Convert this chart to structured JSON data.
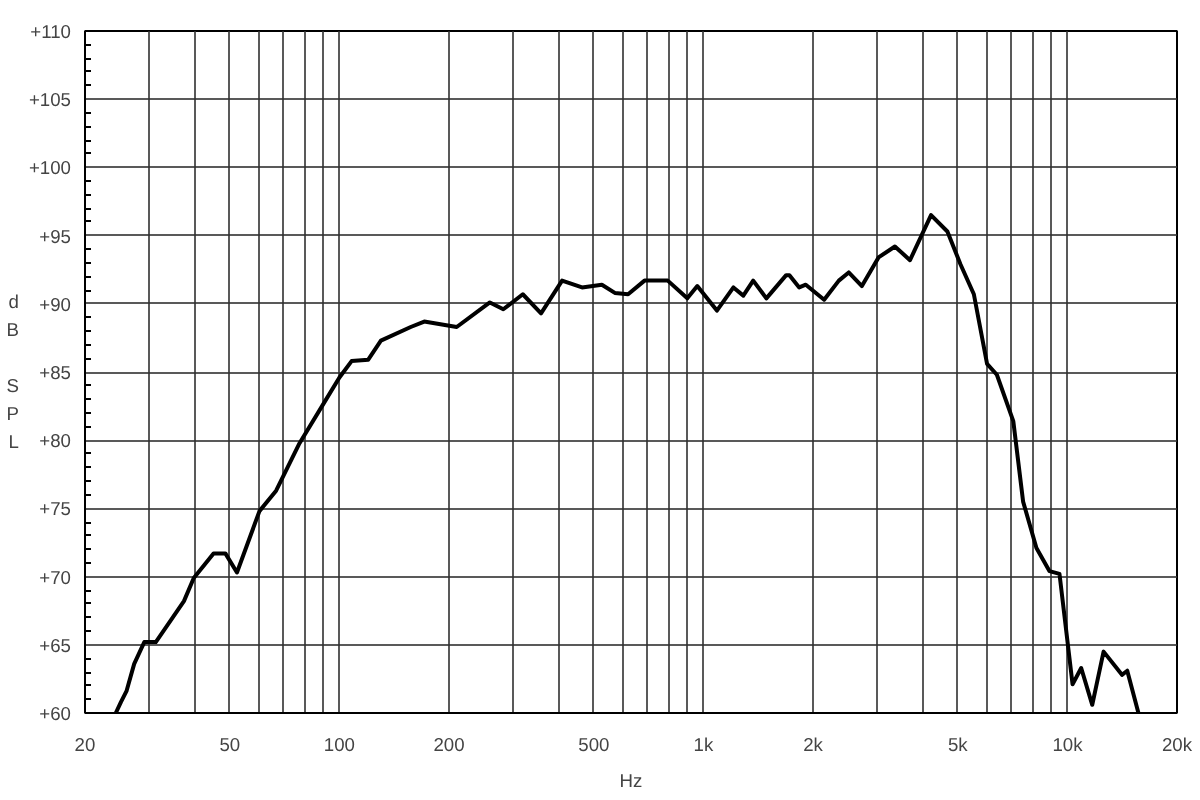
{
  "chart_data": {
    "type": "line",
    "xlabel": "Hz",
    "ylabel": "dB SPL",
    "log": "x",
    "grid": true,
    "marker": "none",
    "line_style": "solid",
    "xlim": [
      20,
      20000
    ],
    "ylim": [
      60,
      110
    ],
    "xticks": [
      20,
      {
        "value": 30,
        "label": null
      },
      {
        "value": 40,
        "label": null
      },
      50,
      {
        "value": 60,
        "label": null
      },
      {
        "value": 70,
        "label": null
      },
      {
        "value": 80,
        "label": null
      },
      {
        "value": 90,
        "label": null
      },
      100,
      200,
      {
        "value": 300,
        "label": null
      },
      {
        "value": 400,
        "label": null
      },
      500,
      {
        "value": 600,
        "label": null
      },
      {
        "value": 700,
        "label": null
      },
      {
        "value": 800,
        "label": null
      },
      {
        "value": 900,
        "label": null
      },
      {
        "value": 1000,
        "label": "1k"
      },
      {
        "value": 2000,
        "label": "2k"
      },
      {
        "value": 3000,
        "label": null
      },
      {
        "value": 4000,
        "label": null
      },
      {
        "value": 5000,
        "label": "5k"
      },
      {
        "value": 6000,
        "label": null
      },
      {
        "value": 7000,
        "label": null
      },
      {
        "value": 8000,
        "label": null
      },
      {
        "value": 9000,
        "label": null
      },
      {
        "value": 10000,
        "label": "10k"
      },
      {
        "value": 20000,
        "label": "20k"
      }
    ],
    "yticks": [
      {
        "value": 60,
        "label": "+60"
      },
      {
        "value": 65,
        "label": "+65"
      },
      {
        "value": 70,
        "label": "+70"
      },
      {
        "value": 75,
        "label": "+75"
      },
      {
        "value": 80,
        "label": "+80"
      },
      {
        "value": 85,
        "label": "+85"
      },
      {
        "value": 90,
        "label": "+90"
      },
      {
        "value": 95,
        "label": "+95"
      },
      {
        "value": 100,
        "label": "+100"
      },
      {
        "value": 105,
        "label": "+105"
      },
      {
        "value": 110,
        "label": "+110"
      }
    ],
    "series": [
      {
        "color": "#000000",
        "x": [
          24.3,
          25.1,
          26.0,
          27.3,
          29.1,
          31.3,
          37.4,
          39.8,
          45.1,
          48.6,
          52.3,
          60.3,
          67,
          77.4,
          91.5,
          100,
          108,
          120,
          130,
          157,
          171,
          210,
          259,
          282,
          319,
          358,
          409,
          464,
          526,
          571,
          621,
          689,
          798,
          903,
          962,
          1089,
          1209,
          1287,
          1370,
          1489,
          1688,
          1723,
          1833,
          1911,
          2146,
          2355,
          2507,
          2725,
          3027,
          3358,
          3694,
          4220,
          4680,
          5083,
          5533,
          6015,
          6400,
          7100,
          7555,
          8220,
          8930,
          9510,
          10330,
          10910,
          11700,
          12570,
          14120,
          14600,
          15670
        ],
        "values": [
          60,
          60.8,
          61.6,
          63.6,
          65.2,
          65.2,
          68.2,
          69.9,
          71.7,
          71.7,
          70.3,
          74.8,
          76.3,
          79.7,
          82.9,
          84.6,
          85.8,
          85.9,
          87.3,
          88.3,
          88.7,
          88.3,
          90.1,
          89.6,
          90.7,
          89.3,
          91.7,
          91.2,
          91.4,
          90.8,
          90.7,
          91.7,
          91.7,
          90.4,
          91.3,
          89.5,
          91.2,
          90.6,
          91.7,
          90.4,
          92.1,
          92.1,
          91.2,
          91.4,
          90.3,
          91.7,
          92.3,
          91.3,
          93.4,
          94.2,
          93.2,
          96.5,
          95.3,
          92.9,
          90.7,
          85.6,
          84.8,
          81.4,
          75.5,
          72.1,
          70.4,
          70.2,
          62.1,
          63.3,
          60.6,
          64.5,
          62.8,
          63.1,
          60
        ]
      }
    ]
  }
}
